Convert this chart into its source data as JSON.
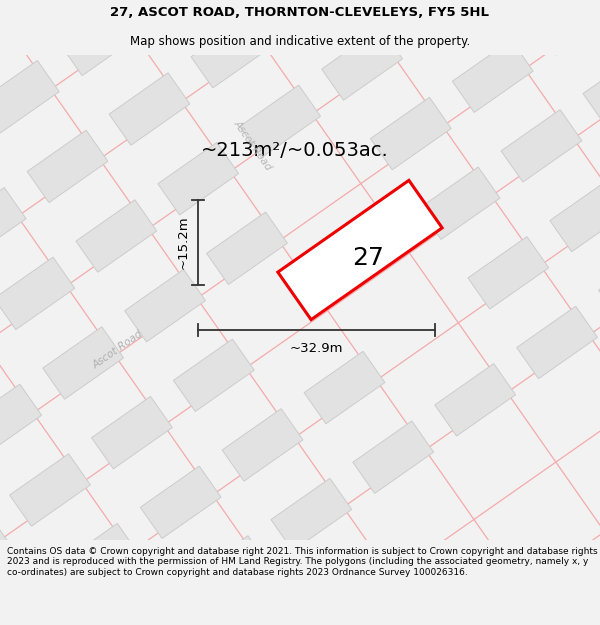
{
  "title": "27, ASCOT ROAD, THORNTON-CLEVELEYS, FY5 5HL",
  "subtitle": "Map shows position and indicative extent of the property.",
  "area_label": "~213m²/~0.053ac.",
  "number_label": "27",
  "dim_width": "~32.9m",
  "dim_height": "~15.2m",
  "road_label_main": "Ascot Road",
  "road_label_side": "Ascot Road",
  "footer": "Contains OS data © Crown copyright and database right 2021. This information is subject to Crown copyright and database rights 2023 and is reproduced with the permission of HM Land Registry. The polygons (including the associated geometry, namely x, y co-ordinates) are subject to Crown copyright and database rights 2023 Ordnance Survey 100026316.",
  "bg_color": "#f2f2f2",
  "map_bg": "#ffffff",
  "building_color": "#e2e2e2",
  "building_edge": "#cccccc",
  "road_line_color": "#f5aaaa",
  "property_color": "#ffffff",
  "property_edge": "#ee0000",
  "dim_line_color": "#333333",
  "title_fontsize": 9.5,
  "subtitle_fontsize": 8.5,
  "footer_fontsize": 6.5,
  "area_fontsize": 14,
  "num_fontsize": 18,
  "dim_fontsize": 9.5,
  "road_fontsize": 7.5
}
